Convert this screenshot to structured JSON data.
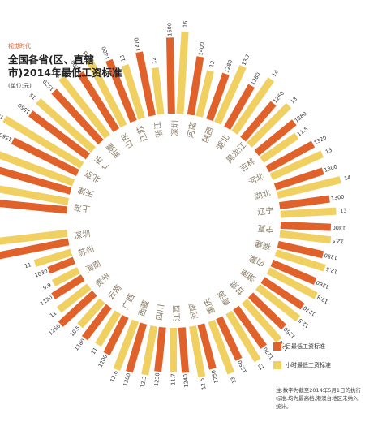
{
  "header": {
    "tag": "视觉时代",
    "title": "全国各省(区、直辖市)2014年最低工资标准",
    "unit": "(单位:元)"
  },
  "note": "注:数字为截至2014年5月1日的执行标准,均为最高档,港澳台地区未纳入统计。",
  "colors": {
    "monthly": "#e0612a",
    "hourly": "#f0d060"
  },
  "chart_data": {
    "type": "bar",
    "layout": "radial",
    "title": "全国各省(区、直辖市)2014年最低工资标准",
    "unit": "(单位:元)",
    "categories": [
      "上海",
      "天津",
      "北京",
      "广东",
      "新疆",
      "山东",
      "江苏",
      "浙江",
      "深圳",
      "河南",
      "陕西",
      "湖北",
      "黑龙江",
      "吉林",
      "河北",
      "湖北",
      "辽宁",
      "宁夏",
      "福建",
      "内蒙",
      "湖南",
      "甘肃",
      "青海",
      "重庆",
      "河南",
      "江西",
      "四川",
      "西藏",
      "广西",
      "云南",
      "贵州",
      "海南",
      "苏州",
      "深圳"
    ],
    "series": [
      {
        "name": "月最低工资标准",
        "values": [
          1820,
          1680,
          1560,
          1550,
          1520,
          1500,
          1480,
          1470,
          1600,
          1400,
          1280,
          1280,
          1260,
          1280,
          1320,
          1300,
          1300,
          1300,
          1250,
          1260,
          1270,
          1250,
          1270,
          1250,
          1250,
          1240,
          1230,
          1300,
          1200,
          1180,
          1250,
          1120,
          1030,
          1808
        ]
      },
      {
        "name": "小时最低工资标准",
        "values": [
          17,
          16.8,
          16.9,
          15,
          15.1,
          15,
          13,
          12,
          16,
          12,
          13.7,
          14,
          13,
          11.5,
          13,
          14,
          13,
          12.5,
          12.5,
          12.8,
          12.5,
          12.6,
          13,
          13,
          12.5,
          11.7,
          12.3,
          12.6,
          11,
          10.5,
          11,
          9.9,
          11,
          15.5
        ]
      }
    ],
    "labels_monthly": [
      "1820",
      "1680",
      "1560",
      "1550",
      "1520",
      "1500",
      "1480",
      "1470",
      "1600",
      "1400",
      "1280",
      "1280",
      "1260",
      "1280",
      "1320",
      "1300",
      "1300",
      "1300",
      "1250",
      "1260",
      "1270",
      "1250",
      "1270",
      "1250",
      "1250",
      "1240",
      "1230",
      "1300",
      "1200",
      "1180",
      "1250",
      "1120",
      "1030",
      "1808"
    ],
    "labels_hourly": [
      "17",
      "16.8",
      "16.9",
      "15",
      "15.1",
      "15",
      "13",
      "12",
      "16",
      "12",
      "13.7",
      "14",
      "13",
      "11.5",
      "13",
      "14",
      "13",
      "12.5",
      "12.5",
      "12.8",
      "12.5",
      "12.6",
      "13",
      "13",
      "12.5",
      "11.7",
      "12.3",
      "12.6",
      "11",
      "10.5",
      "11",
      "9.9",
      "11",
      "15.5"
    ]
  }
}
